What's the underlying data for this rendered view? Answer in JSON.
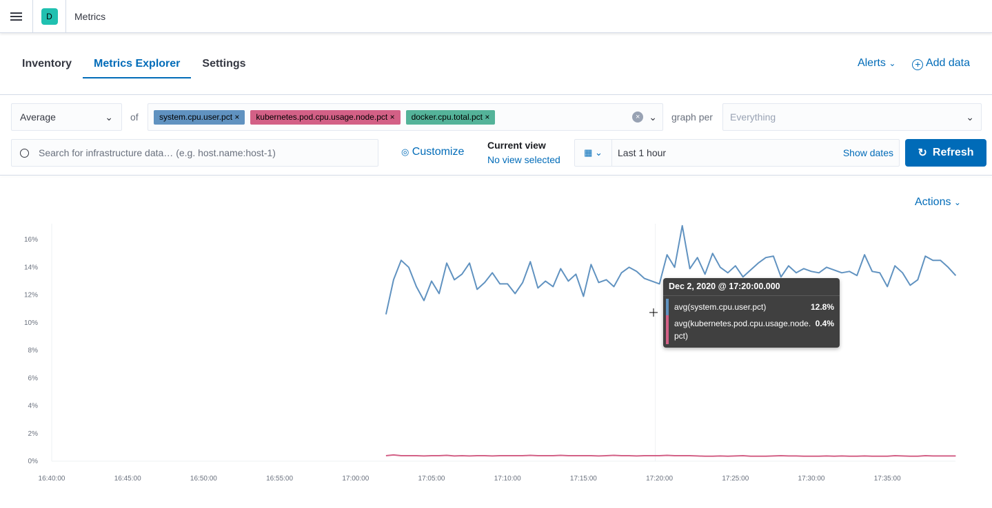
{
  "header": {
    "avatar_letter": "D",
    "breadcrumb": "Metrics"
  },
  "tabs": [
    {
      "label": "Inventory"
    },
    {
      "label": "Metrics Explorer",
      "active": true
    },
    {
      "label": "Settings"
    }
  ],
  "top_actions": {
    "alerts": "Alerts",
    "add_data": "Add data"
  },
  "toolbar": {
    "aggregation": "Average",
    "of_label": "of",
    "metrics": [
      {
        "label": "system.cpu.user.pct",
        "color": "#6092c0"
      },
      {
        "label": "kubernetes.pod.cpu.usage.node.pct",
        "color": "#d36086"
      },
      {
        "label": "docker.cpu.total.pct",
        "color": "#54b399"
      }
    ],
    "graph_per_label": "graph per",
    "graph_per_placeholder": "Everything",
    "search_placeholder": "Search for infrastructure data… (e.g. host.name:host-1)",
    "customize": "Customize",
    "current_view_label": "Current view",
    "current_view_value": "No view selected",
    "time_range": "Last 1 hour",
    "show_dates": "Show dates",
    "refresh": "Refresh"
  },
  "chart_actions": "Actions",
  "tooltip": {
    "title": "Dec 2, 2020 @ 17:20:00.000",
    "rows": [
      {
        "label": "avg(system.cpu.user.pct)",
        "value": "12.8%",
        "color": "#6092c0"
      },
      {
        "label": "avg(kubernetes.pod.cpu.usage.node.pct)",
        "value": "0.4%",
        "color": "#d36086"
      }
    ]
  },
  "chart_data": {
    "type": "line",
    "grid": "x-crosshair only",
    "ylim": [
      0,
      16
    ],
    "xlim": [
      "16:40:00",
      "17:39:30"
    ],
    "y_ticks": [
      "0%",
      "2%",
      "4%",
      "6%",
      "8%",
      "10%",
      "12%",
      "14%",
      "16%"
    ],
    "x_ticks": [
      "16:40:00",
      "16:45:00",
      "16:50:00",
      "16:55:00",
      "17:00:00",
      "17:05:00",
      "17:10:00",
      "17:15:00",
      "17:20:00",
      "17:25:00",
      "17:30:00",
      "17:35:00"
    ],
    "x": [
      "17:02:00",
      "17:02:30",
      "17:03:00",
      "17:03:30",
      "17:04:00",
      "17:04:30",
      "17:05:00",
      "17:05:30",
      "17:06:00",
      "17:06:30",
      "17:07:00",
      "17:07:30",
      "17:08:00",
      "17:08:30",
      "17:09:00",
      "17:09:30",
      "17:10:00",
      "17:10:30",
      "17:11:00",
      "17:11:30",
      "17:12:00",
      "17:12:30",
      "17:13:00",
      "17:13:30",
      "17:14:00",
      "17:14:30",
      "17:15:00",
      "17:15:30",
      "17:16:00",
      "17:16:30",
      "17:17:00",
      "17:17:30",
      "17:18:00",
      "17:18:30",
      "17:19:00",
      "17:19:30",
      "17:20:00",
      "17:20:30",
      "17:21:00",
      "17:21:30",
      "17:22:00",
      "17:22:30",
      "17:23:00",
      "17:23:30",
      "17:24:00",
      "17:24:30",
      "17:25:00",
      "17:25:30",
      "17:26:00",
      "17:26:30",
      "17:27:00",
      "17:27:30",
      "17:28:00",
      "17:28:30",
      "17:29:00",
      "17:29:30",
      "17:30:00",
      "17:30:30",
      "17:31:00",
      "17:31:30",
      "17:32:00",
      "17:32:30",
      "17:33:00",
      "17:33:30",
      "17:34:00",
      "17:34:30",
      "17:35:00",
      "17:35:30",
      "17:36:00",
      "17:36:30",
      "17:37:00",
      "17:37:30",
      "17:38:00",
      "17:38:30",
      "17:39:00",
      "17:39:30"
    ],
    "series": [
      {
        "name": "avg(system.cpu.user.pct)",
        "color": "#6092c0",
        "values": [
          10.6,
          13.1,
          14.5,
          14.0,
          12.6,
          11.6,
          13.0,
          12.1,
          14.3,
          13.1,
          13.5,
          14.3,
          12.4,
          12.9,
          13.6,
          12.8,
          12.8,
          12.1,
          12.9,
          14.4,
          12.5,
          13.0,
          12.6,
          13.9,
          13.0,
          13.5,
          11.9,
          14.2,
          12.9,
          13.1,
          12.6,
          13.6,
          14.0,
          13.7,
          13.2,
          13.0,
          12.8,
          14.9,
          14.0,
          17.0,
          13.9,
          14.7,
          13.5,
          15.0,
          14.0,
          13.6,
          14.1,
          13.3,
          13.8,
          14.3,
          14.7,
          14.8,
          13.3,
          14.1,
          13.6,
          13.9,
          13.7,
          13.6,
          14.0,
          13.8,
          13.6,
          13.7,
          13.4,
          14.9,
          13.7,
          13.6,
          12.6,
          14.1,
          13.6,
          12.7,
          13.1,
          14.8,
          14.5,
          14.5,
          14.0,
          13.4
        ]
      },
      {
        "name": "avg(kubernetes.pod.cpu.usage.node.pct)",
        "color": "#d36086",
        "values": [
          0.4,
          0.45,
          0.4,
          0.4,
          0.4,
          0.38,
          0.4,
          0.4,
          0.42,
          0.38,
          0.4,
          0.38,
          0.4,
          0.4,
          0.38,
          0.4,
          0.4,
          0.4,
          0.4,
          0.42,
          0.4,
          0.4,
          0.4,
          0.42,
          0.4,
          0.4,
          0.4,
          0.4,
          0.38,
          0.4,
          0.42,
          0.4,
          0.4,
          0.38,
          0.4,
          0.4,
          0.4,
          0.42,
          0.4,
          0.4,
          0.4,
          0.38,
          0.36,
          0.36,
          0.38,
          0.36,
          0.38,
          0.4,
          0.36,
          0.36,
          0.36,
          0.38,
          0.4,
          0.38,
          0.38,
          0.36,
          0.36,
          0.36,
          0.38,
          0.36,
          0.38,
          0.36,
          0.36,
          0.38,
          0.36,
          0.36,
          0.36,
          0.4,
          0.38,
          0.36,
          0.36,
          0.4,
          0.38,
          0.38,
          0.38,
          0.38
        ]
      }
    ]
  }
}
